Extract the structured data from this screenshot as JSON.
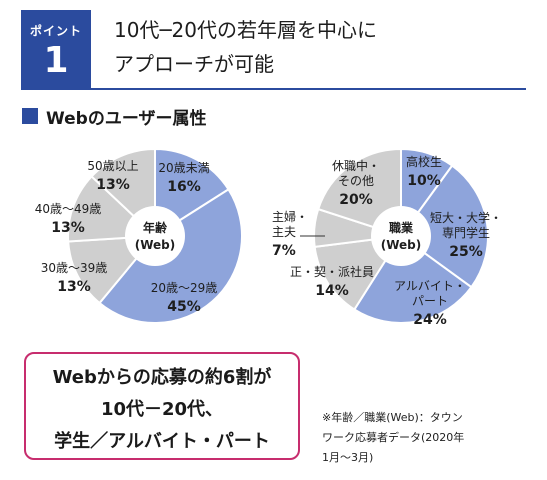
{
  "header": {
    "badge_label": "ポイント",
    "badge_number": "1",
    "title_line1": "10代─20代の若年層を中心に",
    "title_line2": "アプローチが可能"
  },
  "section": {
    "title": "Webのユーザー属性"
  },
  "colors": {
    "accent": "#2b4b9e",
    "blue": "#8ea4db",
    "gray": "#cfcfcf",
    "callout_border": "#c72d6e"
  },
  "chart_data": [
    {
      "type": "pie",
      "center_label": [
        "年齢",
        "(Web)"
      ],
      "slices": [
        {
          "name": "20歳未満",
          "value": 16,
          "pct_label": "16%",
          "color": "#8ea4db"
        },
        {
          "name": "20歳～29歳",
          "value": 45,
          "pct_label": "45%",
          "color": "#8ea4db"
        },
        {
          "name": "30歳～39歳",
          "value": 13,
          "pct_label": "13%",
          "color": "#cfcfcf"
        },
        {
          "name": "40歳～49歳",
          "value": 13,
          "pct_label": "13%",
          "color": "#cfcfcf"
        },
        {
          "name": "50歳以上",
          "value": 13,
          "pct_label": "13%",
          "color": "#cfcfcf"
        }
      ]
    },
    {
      "type": "pie",
      "center_label": [
        "職業",
        "(Web)"
      ],
      "slices": [
        {
          "name": "高校生",
          "value": 10,
          "pct_label": "10%",
          "color": "#8ea4db"
        },
        {
          "name": "短大・大学・専門学生",
          "name_lines": [
            "短大・大学・",
            "専門学生"
          ],
          "value": 25,
          "pct_label": "25%",
          "color": "#8ea4db"
        },
        {
          "name": "アルバイト・パート",
          "name_lines": [
            "アルバイト・",
            "パート"
          ],
          "value": 24,
          "pct_label": "24%",
          "color": "#8ea4db"
        },
        {
          "name": "正・契・派社員",
          "value": 14,
          "pct_label": "14%",
          "color": "#cfcfcf"
        },
        {
          "name": "主婦・主夫",
          "name_lines": [
            "主婦・",
            "主夫"
          ],
          "value": 7,
          "pct_label": "7%",
          "color": "#cfcfcf"
        },
        {
          "name": "休職中・その他",
          "name_lines": [
            "休職中・",
            "その他"
          ],
          "value": 20,
          "pct_label": "20%",
          "color": "#cfcfcf"
        }
      ]
    }
  ],
  "callout": {
    "line1": "Webからの応募の約6割が",
    "line2": "10代－20代、",
    "line3": "学生／アルバイト・パート"
  },
  "note": {
    "line1": "※年齢／職業(Web)：タウン",
    "line2": "ワーク応募者データ(2020年",
    "line3": "1月～3月)"
  }
}
